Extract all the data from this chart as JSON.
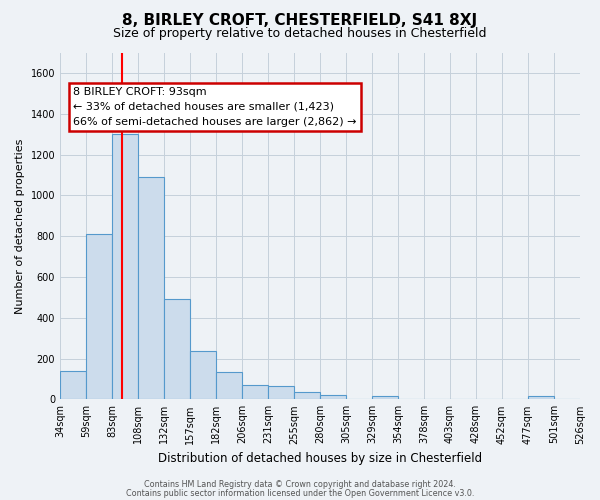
{
  "title": "8, BIRLEY CROFT, CHESTERFIELD, S41 8XJ",
  "subtitle": "Size of property relative to detached houses in Chesterfield",
  "xlabel": "Distribution of detached houses by size in Chesterfield",
  "ylabel": "Number of detached properties",
  "bar_values": [
    140,
    810,
    1300,
    1090,
    490,
    235,
    135,
    70,
    65,
    35,
    20,
    0,
    15,
    0,
    0,
    0,
    0,
    0,
    15,
    0
  ],
  "bar_labels": [
    "34sqm",
    "59sqm",
    "83sqm",
    "108sqm",
    "132sqm",
    "157sqm",
    "182sqm",
    "206sqm",
    "231sqm",
    "255sqm",
    "280sqm",
    "305sqm",
    "329sqm",
    "354sqm",
    "378sqm",
    "403sqm",
    "428sqm",
    "452sqm",
    "477sqm",
    "501sqm",
    "526sqm"
  ],
  "bar_color": "#ccdcec",
  "bar_edge_color": "#5599cc",
  "bar_edge_width": 0.8,
  "red_line_x": 2.4,
  "annotation_text": "8 BIRLEY CROFT: 93sqm\n← 33% of detached houses are smaller (1,423)\n66% of semi-detached houses are larger (2,862) →",
  "annotation_box_color": "#ffffff",
  "annotation_box_edge": "#cc0000",
  "ylim": [
    0,
    1700
  ],
  "yticks": [
    0,
    200,
    400,
    600,
    800,
    1000,
    1200,
    1400,
    1600
  ],
  "footer_line1": "Contains HM Land Registry data © Crown copyright and database right 2024.",
  "footer_line2": "Contains public sector information licensed under the Open Government Licence v3.0.",
  "background_color": "#eef2f6",
  "grid_color": "#c5d0db",
  "title_fontsize": 11,
  "subtitle_fontsize": 9,
  "ylabel_fontsize": 8,
  "xlabel_fontsize": 8.5,
  "tick_fontsize": 7,
  "annot_fontsize": 8,
  "footer_fontsize": 5.8
}
